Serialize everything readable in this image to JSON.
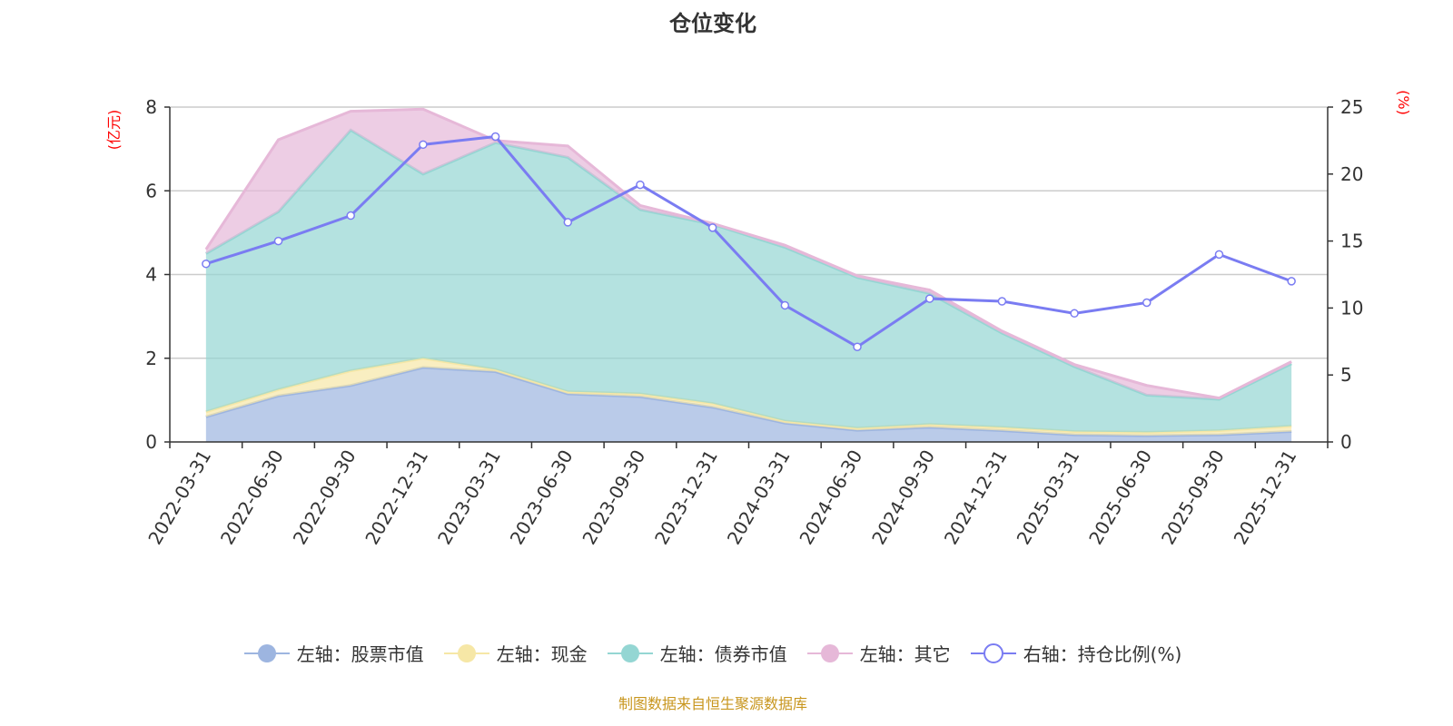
{
  "chart_data": {
    "type": "area",
    "title": "仓位变化",
    "left_axis_unit": "(亿元)",
    "right_axis_unit": "(%)",
    "ylim_left": [
      0,
      8
    ],
    "yticks_left": [
      "0",
      "2",
      "4",
      "6",
      "8"
    ],
    "ylim_right": [
      0,
      25
    ],
    "yticks_right": [
      "0",
      "5",
      "10",
      "15",
      "20",
      "25"
    ],
    "grid": true,
    "stacked": true,
    "legend_position": "bottom",
    "categories": [
      "2022-03-31",
      "2022-06-30",
      "2022-09-30",
      "2022-12-31",
      "2023-03-31",
      "2023-06-30",
      "2023-09-30",
      "2023-12-31",
      "2024-03-31",
      "2024-06-30",
      "2024-09-30",
      "2024-12-31",
      "2025-03-31",
      "2025-06-30",
      "2025-09-30",
      "2025-12-31"
    ],
    "series": [
      {
        "name": "左轴：股票市值",
        "axis": "left",
        "color": "#9db5e0",
        "values": [
          0.6,
          1.1,
          1.35,
          1.78,
          1.68,
          1.15,
          1.08,
          0.83,
          0.45,
          0.28,
          0.35,
          0.27,
          0.17,
          0.15,
          0.17,
          0.25
        ]
      },
      {
        "name": "左轴：现金",
        "axis": "left",
        "color": "#f6e7a6",
        "values": [
          0.12,
          0.15,
          0.35,
          0.22,
          0.05,
          0.05,
          0.07,
          0.09,
          0.05,
          0.05,
          0.07,
          0.08,
          0.08,
          0.08,
          0.1,
          0.13
        ]
      },
      {
        "name": "左轴：债券市值",
        "axis": "left",
        "color": "#94d6d3",
        "values": [
          3.78,
          4.25,
          5.75,
          4.4,
          5.42,
          5.6,
          4.4,
          4.28,
          4.15,
          3.6,
          3.13,
          2.25,
          1.55,
          0.89,
          0.75,
          1.49
        ]
      },
      {
        "name": "左轴：其它",
        "axis": "left",
        "color": "#e6b8d8",
        "values": [
          0.1,
          1.72,
          0.45,
          1.55,
          0.05,
          0.27,
          0.1,
          0.02,
          0.05,
          0.04,
          0.08,
          0.05,
          0.05,
          0.23,
          0.03,
          0.05
        ]
      },
      {
        "name": "右轴：持仓比例(%)",
        "axis": "right",
        "type": "line",
        "color": "#7a7cf2",
        "values": [
          13.3,
          15.0,
          16.9,
          22.2,
          22.8,
          16.4,
          19.2,
          16.0,
          10.2,
          7.1,
          10.7,
          10.5,
          9.6,
          10.4,
          14.0,
          12.0
        ]
      }
    ]
  },
  "footer": "制图数据来自恒生聚源数据库"
}
